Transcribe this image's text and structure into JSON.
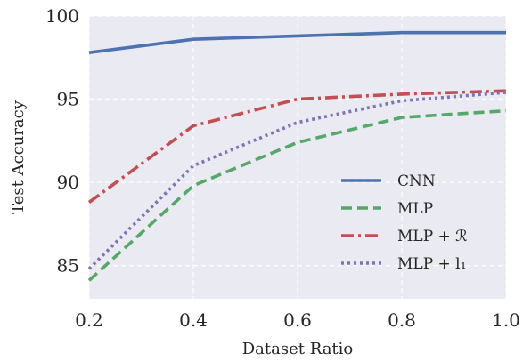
{
  "chart_data": {
    "type": "line",
    "xlabel": "Dataset Ratio",
    "ylabel": "Test Accuracy",
    "xlim": [
      0.2,
      1.0
    ],
    "ylim": [
      83,
      100
    ],
    "x_ticks": [
      "0.2",
      "0.4",
      "0.6",
      "0.8",
      "1.0"
    ],
    "y_ticks": [
      "85",
      "90",
      "95",
      "100"
    ],
    "grid": true,
    "legend_position": "bottom-right",
    "x": [
      0.2,
      0.4,
      0.6,
      0.8,
      1.0
    ],
    "series": [
      {
        "name": "CNN",
        "values": [
          97.8,
          98.6,
          98.8,
          99.0,
          99.0
        ],
        "color": "#4c72b0",
        "style": "solid"
      },
      {
        "name": "MLP",
        "values": [
          84.1,
          89.8,
          92.4,
          93.9,
          94.3
        ],
        "color": "#55a868",
        "style": "dashed"
      },
      {
        "name": "MLP + ℛ",
        "values": [
          88.8,
          93.4,
          95.0,
          95.3,
          95.5
        ],
        "color": "#c44e52",
        "style": "dashdot"
      },
      {
        "name": "MLP + l₁",
        "values": [
          84.8,
          91.0,
          93.6,
          94.9,
          95.4
        ],
        "color": "#8172b3",
        "style": "dotted"
      }
    ]
  },
  "colors": {
    "plot_background": "#eaeaf2",
    "grid": "#ffffff",
    "text": "#262626"
  }
}
